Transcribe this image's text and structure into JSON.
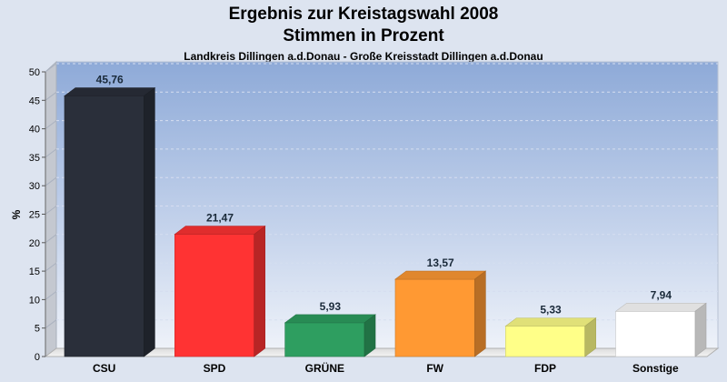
{
  "chart_data": {
    "type": "bar",
    "title": "Ergebnis zur Kreistagswahl 2008",
    "title_line2": "Stimmen in Prozent",
    "subtitle": "Landkreis Dillingen a.d.Donau - Große Kreisstadt Dillingen a.d.Donau",
    "ylabel": "%",
    "xlabel": "",
    "ylim": [
      0,
      50
    ],
    "yticks": [
      0,
      5,
      10,
      15,
      20,
      25,
      30,
      35,
      40,
      45,
      50
    ],
    "grid": true,
    "legend": "none",
    "categories": [
      "CSU",
      "SPD",
      "GRÜNE",
      "FW",
      "FDP",
      "Sonstige"
    ],
    "values": [
      45.76,
      21.47,
      5.93,
      13.57,
      5.33,
      7.94
    ],
    "value_labels": [
      "45,76",
      "21,47",
      "5,93",
      "13,57",
      "5,33",
      "7,94"
    ],
    "colors": [
      "#2a2f3a",
      "#ff3333",
      "#2e9e60",
      "#ff9933",
      "#ffff88",
      "#ffffff"
    ]
  }
}
